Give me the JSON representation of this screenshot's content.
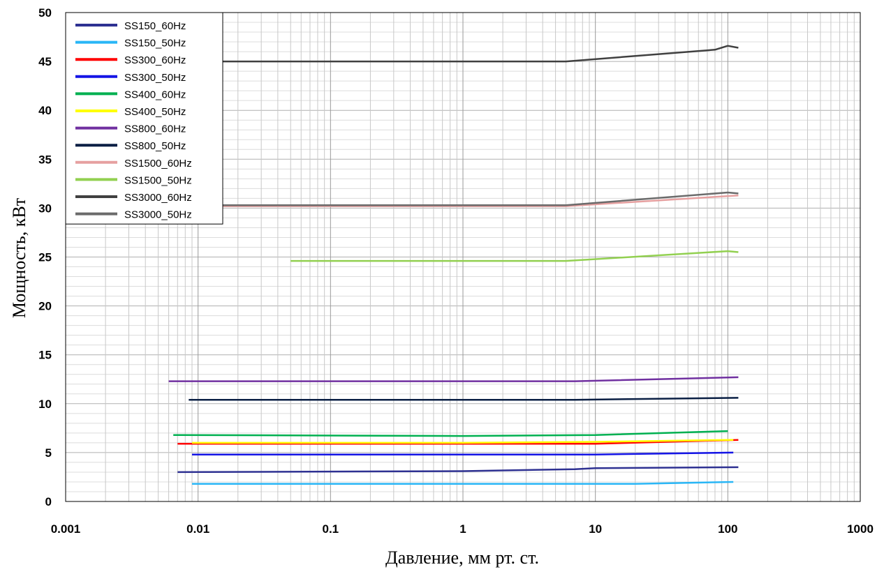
{
  "chart_data": {
    "type": "line",
    "xlabel": "Давление, мм рт. ст.",
    "ylabel": "Мощность, кВт",
    "x_scale": "log",
    "xlim": [
      0.001,
      1000
    ],
    "ylim": [
      0,
      50
    ],
    "x_ticks": [
      "0.001",
      "0.01",
      "0.1",
      "1",
      "10",
      "100",
      "1000"
    ],
    "y_ticks": [
      "0",
      "5",
      "10",
      "15",
      "20",
      "25",
      "30",
      "35",
      "40",
      "45",
      "50"
    ],
    "grid": true,
    "legend_position": "top-left",
    "series": [
      {
        "name": "SS150_60Hz",
        "color": "#2e3192",
        "points": [
          [
            0.007,
            3.0
          ],
          [
            1,
            3.1
          ],
          [
            7,
            3.3
          ],
          [
            10,
            3.4
          ],
          [
            120,
            3.5
          ]
        ]
      },
      {
        "name": "SS150_50Hz",
        "color": "#29b6f6",
        "points": [
          [
            0.009,
            1.8
          ],
          [
            1,
            1.8
          ],
          [
            20,
            1.8
          ],
          [
            110,
            2.0
          ]
        ]
      },
      {
        "name": "SS300_60Hz",
        "color": "#ff0000",
        "points": [
          [
            0.007,
            5.9
          ],
          [
            1,
            5.9
          ],
          [
            10,
            5.9
          ],
          [
            120,
            6.3
          ]
        ]
      },
      {
        "name": "SS300_50Hz",
        "color": "#1414e6",
        "points": [
          [
            0.009,
            4.8
          ],
          [
            1,
            4.8
          ],
          [
            10,
            4.8
          ],
          [
            110,
            5.0
          ]
        ]
      },
      {
        "name": "SS400_60Hz",
        "color": "#00b050",
        "points": [
          [
            0.0065,
            6.8
          ],
          [
            1,
            6.7
          ],
          [
            10,
            6.8
          ],
          [
            100,
            7.2
          ]
        ]
      },
      {
        "name": "SS400_50Hz",
        "color": "#ffff00",
        "points": [
          [
            0.009,
            6.0
          ],
          [
            1,
            6.0
          ],
          [
            10,
            6.1
          ],
          [
            110,
            6.3
          ]
        ]
      },
      {
        "name": "SS800_60Hz",
        "color": "#7030a0",
        "points": [
          [
            0.006,
            12.3
          ],
          [
            1,
            12.3
          ],
          [
            7,
            12.3
          ],
          [
            120,
            12.7
          ]
        ]
      },
      {
        "name": "SS800_50Hz",
        "color": "#0a1f44",
        "points": [
          [
            0.0085,
            10.4
          ],
          [
            1,
            10.4
          ],
          [
            7,
            10.4
          ],
          [
            120,
            10.6
          ]
        ]
      },
      {
        "name": "SS1500_60Hz",
        "color": "#e6a0a0",
        "points": [
          [
            0.006,
            30.2
          ],
          [
            1,
            30.2
          ],
          [
            6,
            30.2
          ],
          [
            120,
            31.3
          ]
        ]
      },
      {
        "name": "SS1500_50Hz",
        "color": "#92d050",
        "points": [
          [
            0.05,
            24.6
          ],
          [
            1,
            24.6
          ],
          [
            6,
            24.6
          ],
          [
            100,
            25.6
          ],
          [
            120,
            25.5
          ]
        ]
      },
      {
        "name": "SS3000_60Hz",
        "color": "#404040",
        "points": [
          [
            0.006,
            45.0
          ],
          [
            1,
            45.0
          ],
          [
            6,
            45.0
          ],
          [
            80,
            46.2
          ],
          [
            100,
            46.6
          ],
          [
            120,
            46.4
          ]
        ]
      },
      {
        "name": "SS3000_50Hz",
        "color": "#6b6b6b",
        "points": [
          [
            0.006,
            30.3
          ],
          [
            1,
            30.3
          ],
          [
            6,
            30.3
          ],
          [
            100,
            31.6
          ],
          [
            120,
            31.5
          ]
        ]
      }
    ]
  }
}
